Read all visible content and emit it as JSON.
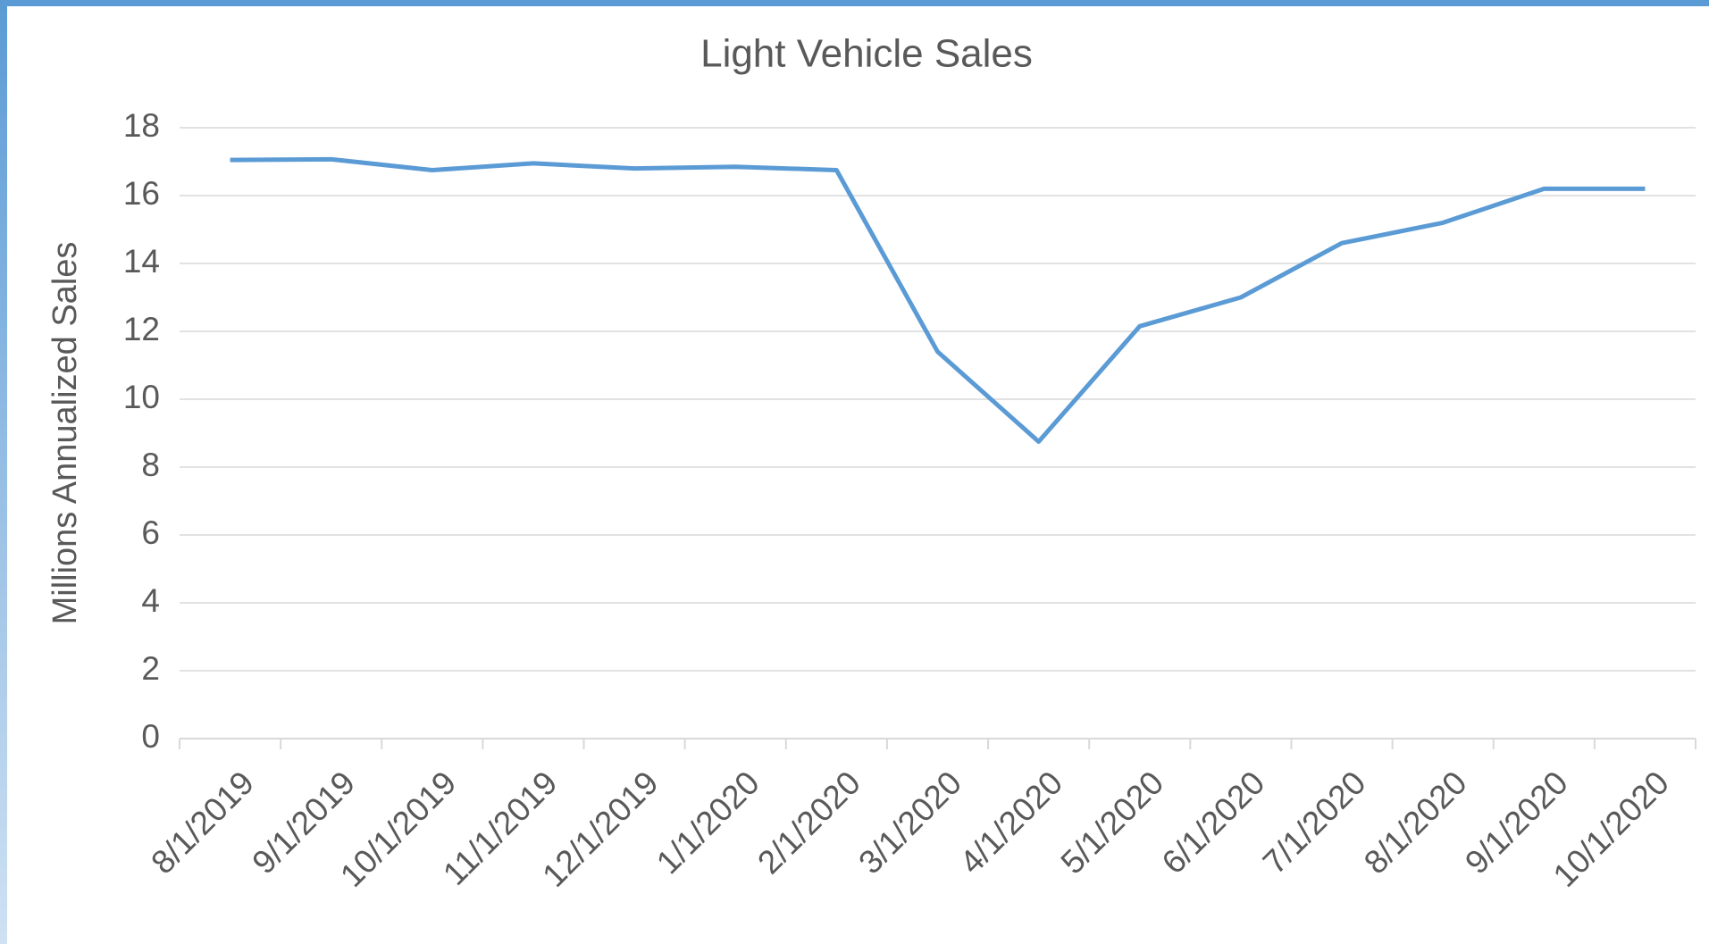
{
  "chart_data": {
    "type": "line",
    "title": "Light Vehicle Sales",
    "y_label": "Millions Annualized Sales",
    "categories": [
      "8/1/2019",
      "9/1/2019",
      "10/1/2019",
      "11/1/2019",
      "12/1/2019",
      "1/1/2020",
      "2/1/2020",
      "3/1/2020",
      "4/1/2020",
      "5/1/2020",
      "6/1/2020",
      "7/1/2020",
      "8/1/2020",
      "9/1/2020",
      "10/1/2020"
    ],
    "series": [
      {
        "name": "Light Vehicle Sales",
        "color": "#5b9bd5",
        "values": [
          17.05,
          17.07,
          16.75,
          16.95,
          16.8,
          16.85,
          16.75,
          11.4,
          8.75,
          12.15,
          13.0,
          14.6,
          15.2,
          16.2,
          16.2
        ]
      }
    ],
    "ylim": [
      0,
      18
    ],
    "yticks": [
      0,
      2,
      4,
      6,
      8,
      10,
      12,
      14,
      16,
      18
    ],
    "grid": true
  }
}
